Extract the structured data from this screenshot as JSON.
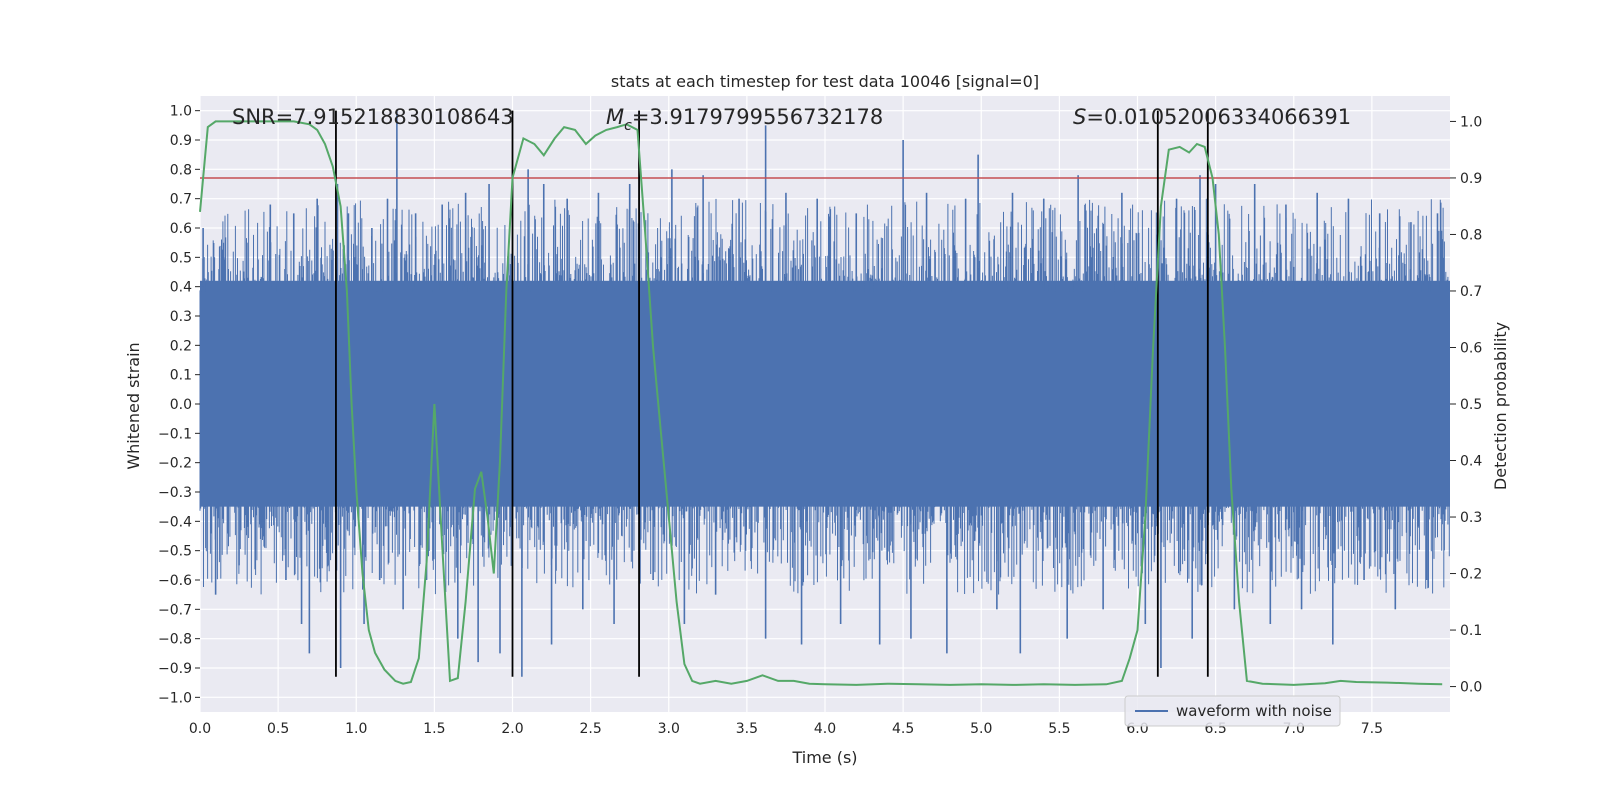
{
  "chart_data": {
    "type": "line",
    "title": "stats at each timestep for test data 10046 [signal=0]",
    "xlabel": "Time (s)",
    "ylabel_left": "Whitened strain",
    "ylabel_right": "Detection probability",
    "xlim": [
      0.0,
      8.0
    ],
    "ylim_left": [
      -1.05,
      1.05
    ],
    "ylim_right": [
      -0.045,
      1.045
    ],
    "x_ticks": [
      "0.0",
      "0.5",
      "1.0",
      "1.5",
      "2.0",
      "2.5",
      "3.0",
      "3.5",
      "4.0",
      "4.5",
      "5.0",
      "5.5",
      "6.0",
      "6.5",
      "7.0",
      "7.5"
    ],
    "y_left_ticks": [
      "1.0",
      "0.9",
      "0.8",
      "0.7",
      "0.6",
      "0.5",
      "0.4",
      "0.3",
      "0.2",
      "0.1",
      "0.0",
      "-0.1",
      "-0.2",
      "-0.3",
      "-0.4",
      "-0.5",
      "-0.6",
      "-0.7",
      "-0.8",
      "-0.9",
      "-1.0"
    ],
    "y_right_ticks": [
      "1.0",
      "0.9",
      "0.8",
      "0.7",
      "0.6",
      "0.5",
      "0.4",
      "0.3",
      "0.2",
      "0.1",
      "0.0"
    ],
    "grid": true,
    "annotations": {
      "snr": "SNR=7.915218830108643",
      "mc_symbol": "M",
      "mc_sub": "c",
      "mc_value": "=3.9179799556732178",
      "s_symbol": "S",
      "s_value": "=0.01052006334066391"
    },
    "threshold": {
      "value": 0.9,
      "axis": "right",
      "color": "#c44e52"
    },
    "vertical_markers": [
      0.87,
      2.0,
      2.81,
      6.13,
      6.45
    ],
    "marker_range_left": [
      -0.93,
      1.0
    ],
    "series": [
      {
        "name": "waveform with noise",
        "axis": "left",
        "color": "#4c72b0",
        "style": "dense-noise",
        "fill_band": [
          -0.35,
          0.42
        ],
        "spikes": [
          {
            "t": 0.02,
            "v": 0.6
          },
          {
            "t": 0.1,
            "v": -0.65
          },
          {
            "t": 0.15,
            "v": 0.5
          },
          {
            "t": 0.25,
            "v": -0.55
          },
          {
            "t": 0.3,
            "v": 0.55
          },
          {
            "t": 0.45,
            "v": 0.68
          },
          {
            "t": 0.55,
            "v": -0.6
          },
          {
            "t": 0.6,
            "v": 0.65
          },
          {
            "t": 0.65,
            "v": -0.75
          },
          {
            "t": 0.7,
            "v": -0.85
          },
          {
            "t": 0.75,
            "v": 0.7
          },
          {
            "t": 0.82,
            "v": -0.55
          },
          {
            "t": 0.88,
            "v": 0.75
          },
          {
            "t": 0.9,
            "v": -0.9
          },
          {
            "t": 0.95,
            "v": 0.65
          },
          {
            "t": 1.05,
            "v": -0.75
          },
          {
            "t": 1.1,
            "v": 0.6
          },
          {
            "t": 1.15,
            "v": -0.6
          },
          {
            "t": 1.2,
            "v": 0.7
          },
          {
            "t": 1.26,
            "v": 1.0
          },
          {
            "t": 1.3,
            "v": -0.7
          },
          {
            "t": 1.38,
            "v": 0.65
          },
          {
            "t": 1.45,
            "v": -0.6
          },
          {
            "t": 1.55,
            "v": 0.68
          },
          {
            "t": 1.65,
            "v": -0.8
          },
          {
            "t": 1.7,
            "v": 0.72
          },
          {
            "t": 1.78,
            "v": -0.88
          },
          {
            "t": 1.85,
            "v": 0.75
          },
          {
            "t": 1.92,
            "v": -0.85
          },
          {
            "t": 2.06,
            "v": -0.93
          },
          {
            "t": 2.1,
            "v": 0.8
          },
          {
            "t": 2.2,
            "v": 0.75
          },
          {
            "t": 2.25,
            "v": -0.82
          },
          {
            "t": 2.35,
            "v": 0.7
          },
          {
            "t": 2.45,
            "v": -0.7
          },
          {
            "t": 2.55,
            "v": 0.72
          },
          {
            "t": 2.65,
            "v": -0.75
          },
          {
            "t": 2.75,
            "v": 0.75
          },
          {
            "t": 2.9,
            "v": -0.6
          },
          {
            "t": 3.02,
            "v": 0.8
          },
          {
            "t": 3.1,
            "v": -0.75
          },
          {
            "t": 3.22,
            "v": 0.78
          },
          {
            "t": 3.3,
            "v": -0.65
          },
          {
            "t": 3.45,
            "v": 0.7
          },
          {
            "t": 3.62,
            "v": 0.95
          },
          {
            "t": 3.62,
            "v": -0.8
          },
          {
            "t": 3.75,
            "v": 0.72
          },
          {
            "t": 3.85,
            "v": -0.82
          },
          {
            "t": 3.95,
            "v": 0.7
          },
          {
            "t": 4.1,
            "v": -0.75
          },
          {
            "t": 4.2,
            "v": 0.65
          },
          {
            "t": 4.35,
            "v": -0.82
          },
          {
            "t": 4.5,
            "v": 0.9
          },
          {
            "t": 4.55,
            "v": -0.8
          },
          {
            "t": 4.65,
            "v": 0.72
          },
          {
            "t": 4.78,
            "v": -0.85
          },
          {
            "t": 4.9,
            "v": 0.7
          },
          {
            "t": 4.98,
            "v": 0.85
          },
          {
            "t": 5.1,
            "v": -0.7
          },
          {
            "t": 5.2,
            "v": 0.72
          },
          {
            "t": 5.25,
            "v": -0.85
          },
          {
            "t": 5.4,
            "v": 0.7
          },
          {
            "t": 5.55,
            "v": -0.8
          },
          {
            "t": 5.62,
            "v": 0.78
          },
          {
            "t": 5.78,
            "v": -0.7
          },
          {
            "t": 5.9,
            "v": 0.72
          },
          {
            "t": 6.05,
            "v": -0.75
          },
          {
            "t": 6.15,
            "v": -0.9
          },
          {
            "t": 6.25,
            "v": 0.7
          },
          {
            "t": 6.35,
            "v": -0.8
          },
          {
            "t": 6.4,
            "v": 0.78
          },
          {
            "t": 6.5,
            "v": 0.75
          },
          {
            "t": 6.62,
            "v": -0.7
          },
          {
            "t": 6.75,
            "v": 0.75
          },
          {
            "t": 6.85,
            "v": -0.75
          },
          {
            "t": 6.95,
            "v": 0.68
          },
          {
            "t": 7.05,
            "v": -0.7
          },
          {
            "t": 7.15,
            "v": 0.72
          },
          {
            "t": 7.25,
            "v": -0.82
          },
          {
            "t": 7.35,
            "v": 0.7
          },
          {
            "t": 7.45,
            "v": -0.6
          },
          {
            "t": 7.55,
            "v": 0.65
          },
          {
            "t": 7.65,
            "v": -0.7
          },
          {
            "t": 7.75,
            "v": 0.62
          },
          {
            "t": 7.85,
            "v": -0.6
          },
          {
            "t": 7.92,
            "v": 0.65
          }
        ]
      },
      {
        "name": "Detection probability",
        "axis": "right",
        "color": "#55a868",
        "in_legend": false,
        "x": [
          0.0,
          0.05,
          0.1,
          0.2,
          0.4,
          0.6,
          0.7,
          0.75,
          0.8,
          0.85,
          0.9,
          0.94,
          0.97,
          1.0,
          1.04,
          1.08,
          1.12,
          1.18,
          1.25,
          1.3,
          1.35,
          1.4,
          1.45,
          1.5,
          1.55,
          1.6,
          1.65,
          1.7,
          1.76,
          1.8,
          1.84,
          1.88,
          1.92,
          1.96,
          2.0,
          2.07,
          2.14,
          2.2,
          2.27,
          2.33,
          2.4,
          2.47,
          2.53,
          2.6,
          2.67,
          2.73,
          2.8,
          2.85,
          2.9,
          2.95,
          3.0,
          3.05,
          3.1,
          3.15,
          3.2,
          3.3,
          3.4,
          3.5,
          3.6,
          3.7,
          3.8,
          3.9,
          4.0,
          4.2,
          4.4,
          4.6,
          4.8,
          5.0,
          5.2,
          5.4,
          5.6,
          5.8,
          5.9,
          5.95,
          6.0,
          6.05,
          6.1,
          6.15,
          6.2,
          6.27,
          6.33,
          6.38,
          6.43,
          6.48,
          6.52,
          6.56,
          6.6,
          6.65,
          6.7,
          6.8,
          7.0,
          7.2,
          7.3,
          7.4,
          7.6,
          7.8,
          7.95
        ],
        "y": [
          0.84,
          0.99,
          1.0,
          1.0,
          1.0,
          1.0,
          0.995,
          0.985,
          0.96,
          0.92,
          0.85,
          0.7,
          0.5,
          0.35,
          0.2,
          0.1,
          0.06,
          0.03,
          0.01,
          0.005,
          0.008,
          0.05,
          0.22,
          0.5,
          0.25,
          0.01,
          0.015,
          0.15,
          0.35,
          0.38,
          0.3,
          0.2,
          0.4,
          0.7,
          0.9,
          0.97,
          0.96,
          0.94,
          0.97,
          0.99,
          0.985,
          0.96,
          0.975,
          0.985,
          0.99,
          0.995,
          0.985,
          0.8,
          0.6,
          0.45,
          0.3,
          0.15,
          0.04,
          0.01,
          0.005,
          0.01,
          0.005,
          0.01,
          0.02,
          0.01,
          0.01,
          0.005,
          0.004,
          0.003,
          0.005,
          0.004,
          0.003,
          0.004,
          0.003,
          0.004,
          0.003,
          0.004,
          0.01,
          0.05,
          0.1,
          0.3,
          0.6,
          0.85,
          0.95,
          0.955,
          0.945,
          0.96,
          0.955,
          0.9,
          0.8,
          0.6,
          0.35,
          0.15,
          0.01,
          0.005,
          0.003,
          0.006,
          0.01,
          0.008,
          0.007,
          0.005,
          0.004
        ]
      }
    ],
    "legend": {
      "entries": [
        "waveform with noise"
      ],
      "placement": "bottom-right"
    }
  }
}
